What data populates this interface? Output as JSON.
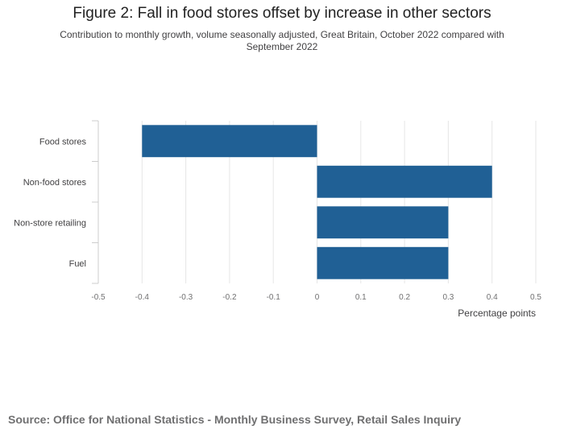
{
  "chart_data": {
    "type": "bar",
    "orientation": "horizontal",
    "title": "Figure 2: Fall in food stores offset by increase in other sectors",
    "subtitle": "Contribution to monthly growth, volume seasonally adjusted, Great Britain, October 2022 compared with September 2022",
    "categories": [
      "Food stores",
      "Non-food stores",
      "Non-store retailing",
      "Fuel"
    ],
    "values": [
      -0.4,
      0.4,
      0.3,
      0.3
    ],
    "xlabel": "Percentage points",
    "ylabel": "",
    "xlim": [
      -0.5,
      0.5
    ],
    "ticks": [
      -0.5,
      -0.4,
      -0.3,
      -0.2,
      -0.1,
      0,
      0.1,
      0.2,
      0.3,
      0.4,
      0.5
    ],
    "tick_labels": [
      "-0.5",
      "-0.4",
      "-0.3",
      "-0.2",
      "-0.1",
      "0",
      "0.1",
      "0.2",
      "0.3",
      "0.4",
      "0.5"
    ],
    "grid": true,
    "bar_color": "#206095"
  },
  "source": "Source: Office for National Statistics - Monthly Business Survey, Retail Sales Inquiry"
}
